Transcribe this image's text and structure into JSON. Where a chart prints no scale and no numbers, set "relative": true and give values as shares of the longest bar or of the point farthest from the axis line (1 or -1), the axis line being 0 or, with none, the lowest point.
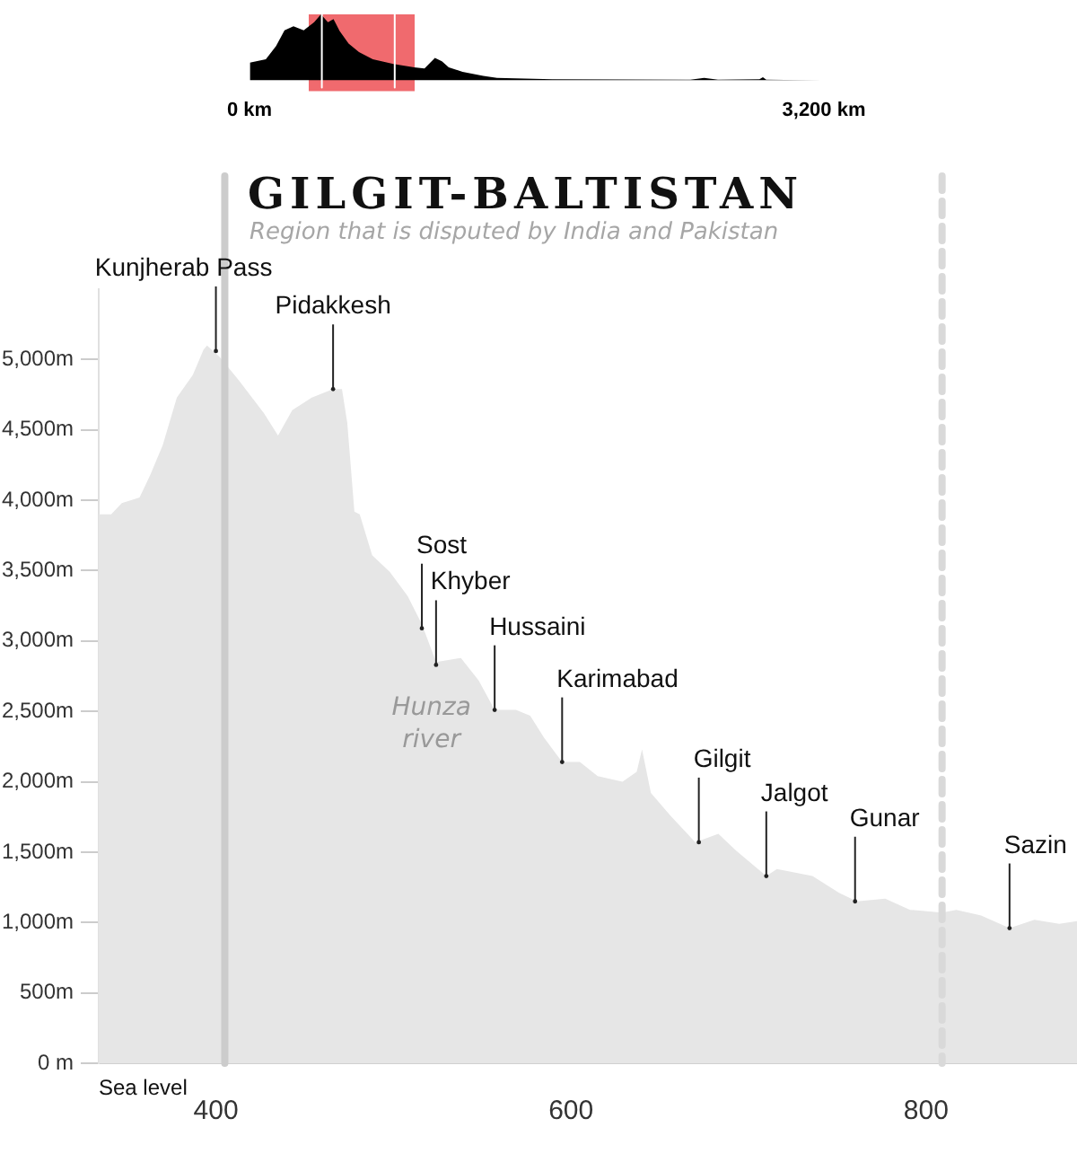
{
  "chart_data": [
    {
      "type": "area",
      "relative": true,
      "color": "#000000",
      "x": [
        2,
        91,
        148,
        195,
        245,
        302,
        360,
        398,
        437,
        468,
        502,
        552,
        610,
        687,
        802,
        918,
        975,
        1033,
        1072,
        1110,
        1187,
        1302,
        1379,
        1687,
        2456,
        2533,
        2610,
        2841,
        2860,
        2879,
        3187
      ],
      "values": [
        0.27,
        0.32,
        0.52,
        0.76,
        0.82,
        0.76,
        0.88,
        1,
        0.88,
        0.93,
        0.75,
        0.56,
        0.43,
        0.32,
        0.25,
        0.2,
        0.18,
        0.34,
        0.29,
        0.2,
        0.13,
        0.07,
        0.04,
        0.02,
        0.01,
        0.04,
        0.01,
        0.02,
        0.05,
        0.01,
        0
      ],
      "xlim": [
        0,
        3200
      ],
      "xticks": [
        {
          "value": 0,
          "label": "0 km"
        },
        {
          "value": 3200,
          "label": "3,200 km"
        }
      ],
      "bands": [
        {
          "axis": "x",
          "from": 330,
          "to": 920,
          "color": "#f06a6e"
        }
      ],
      "ref_lines": [
        {
          "axis": "x",
          "value": 403,
          "color": "#ffffff",
          "line_style": "solid"
        },
        {
          "axis": "x",
          "value": 809,
          "color": "#ffffff",
          "line_style": "solid"
        }
      ]
    },
    {
      "type": "area",
      "title": "GILGIT-BALTISTAN",
      "subtitle": "Region that is disputed by India and Pakistan",
      "color": "#e6e6e6",
      "x": [
        334,
        341,
        347,
        357,
        363,
        370,
        378,
        387,
        393,
        395,
        402,
        413,
        427,
        435,
        443,
        454,
        466,
        471,
        474,
        478,
        481,
        488,
        498,
        508,
        516,
        524,
        538,
        548,
        557,
        569,
        577,
        585,
        595,
        605,
        615,
        629,
        637,
        640,
        645,
        656,
        670,
        683,
        693,
        710,
        716,
        736,
        751,
        761,
        777,
        791,
        809,
        817,
        831,
        847,
        861,
        875,
        885
      ],
      "values": [
        3900,
        3900,
        3980,
        4020,
        4180,
        4390,
        4730,
        4890,
        5070,
        5100,
        5020,
        4850,
        4620,
        4460,
        4640,
        4730,
        4790,
        4790,
        4550,
        3920,
        3900,
        3610,
        3490,
        3320,
        3120,
        2850,
        2880,
        2720,
        2510,
        2510,
        2470,
        2310,
        2140,
        2140,
        2040,
        2000,
        2070,
        2230,
        1920,
        1760,
        1570,
        1630,
        1510,
        1330,
        1380,
        1330,
        1210,
        1150,
        1170,
        1090,
        1070,
        1090,
        1050,
        960,
        1020,
        990,
        1010
      ],
      "xlim": [
        334,
        885
      ],
      "xticks": [
        400,
        600,
        800
      ],
      "ylim": [
        0,
        5500
      ],
      "yticks": [
        {
          "value": 0,
          "label": "0 m"
        },
        {
          "value": 500,
          "label": "500m"
        },
        {
          "value": 1000,
          "label": "1,000m"
        },
        {
          "value": 1500,
          "label": "1,500m"
        },
        {
          "value": 2000,
          "label": "2,000m"
        },
        {
          "value": 2500,
          "label": "2,500m"
        },
        {
          "value": 3000,
          "label": "3,000m"
        },
        {
          "value": 3500,
          "label": "3,500m"
        },
        {
          "value": 4000,
          "label": "4,000m"
        },
        {
          "value": 4500,
          "label": "4,500m"
        },
        {
          "value": 5000,
          "label": "5,000m"
        }
      ],
      "ref_lines": [
        {
          "axis": "x",
          "value": 405,
          "color": "#cccccc",
          "line_style": "solid"
        },
        {
          "axis": "x",
          "value": 809,
          "color": "#d9d9d9",
          "line_style": "dashed"
        }
      ],
      "annotations": [
        "Sea level",
        "Hunza river",
        {
          "text": "Kunjherab Pass",
          "x": 400,
          "y": 5060
        },
        {
          "text": "Pidakkesh",
          "x": 466,
          "y": 4790
        },
        {
          "text": "Sost",
          "x": 516,
          "y": 3090
        },
        {
          "text": "Khyber",
          "x": 524,
          "y": 2830
        },
        {
          "text": "Hussaini",
          "x": 557,
          "y": 2510
        },
        {
          "text": "Karimabad",
          "x": 595,
          "y": 2140
        },
        {
          "text": "Gilgit",
          "x": 672,
          "y": 1570
        },
        {
          "text": "Jalgot",
          "x": 710,
          "y": 1330
        },
        {
          "text": "Gunar",
          "x": 760,
          "y": 1150
        },
        {
          "text": "Sazin",
          "x": 847,
          "y": 960
        }
      ]
    }
  ]
}
